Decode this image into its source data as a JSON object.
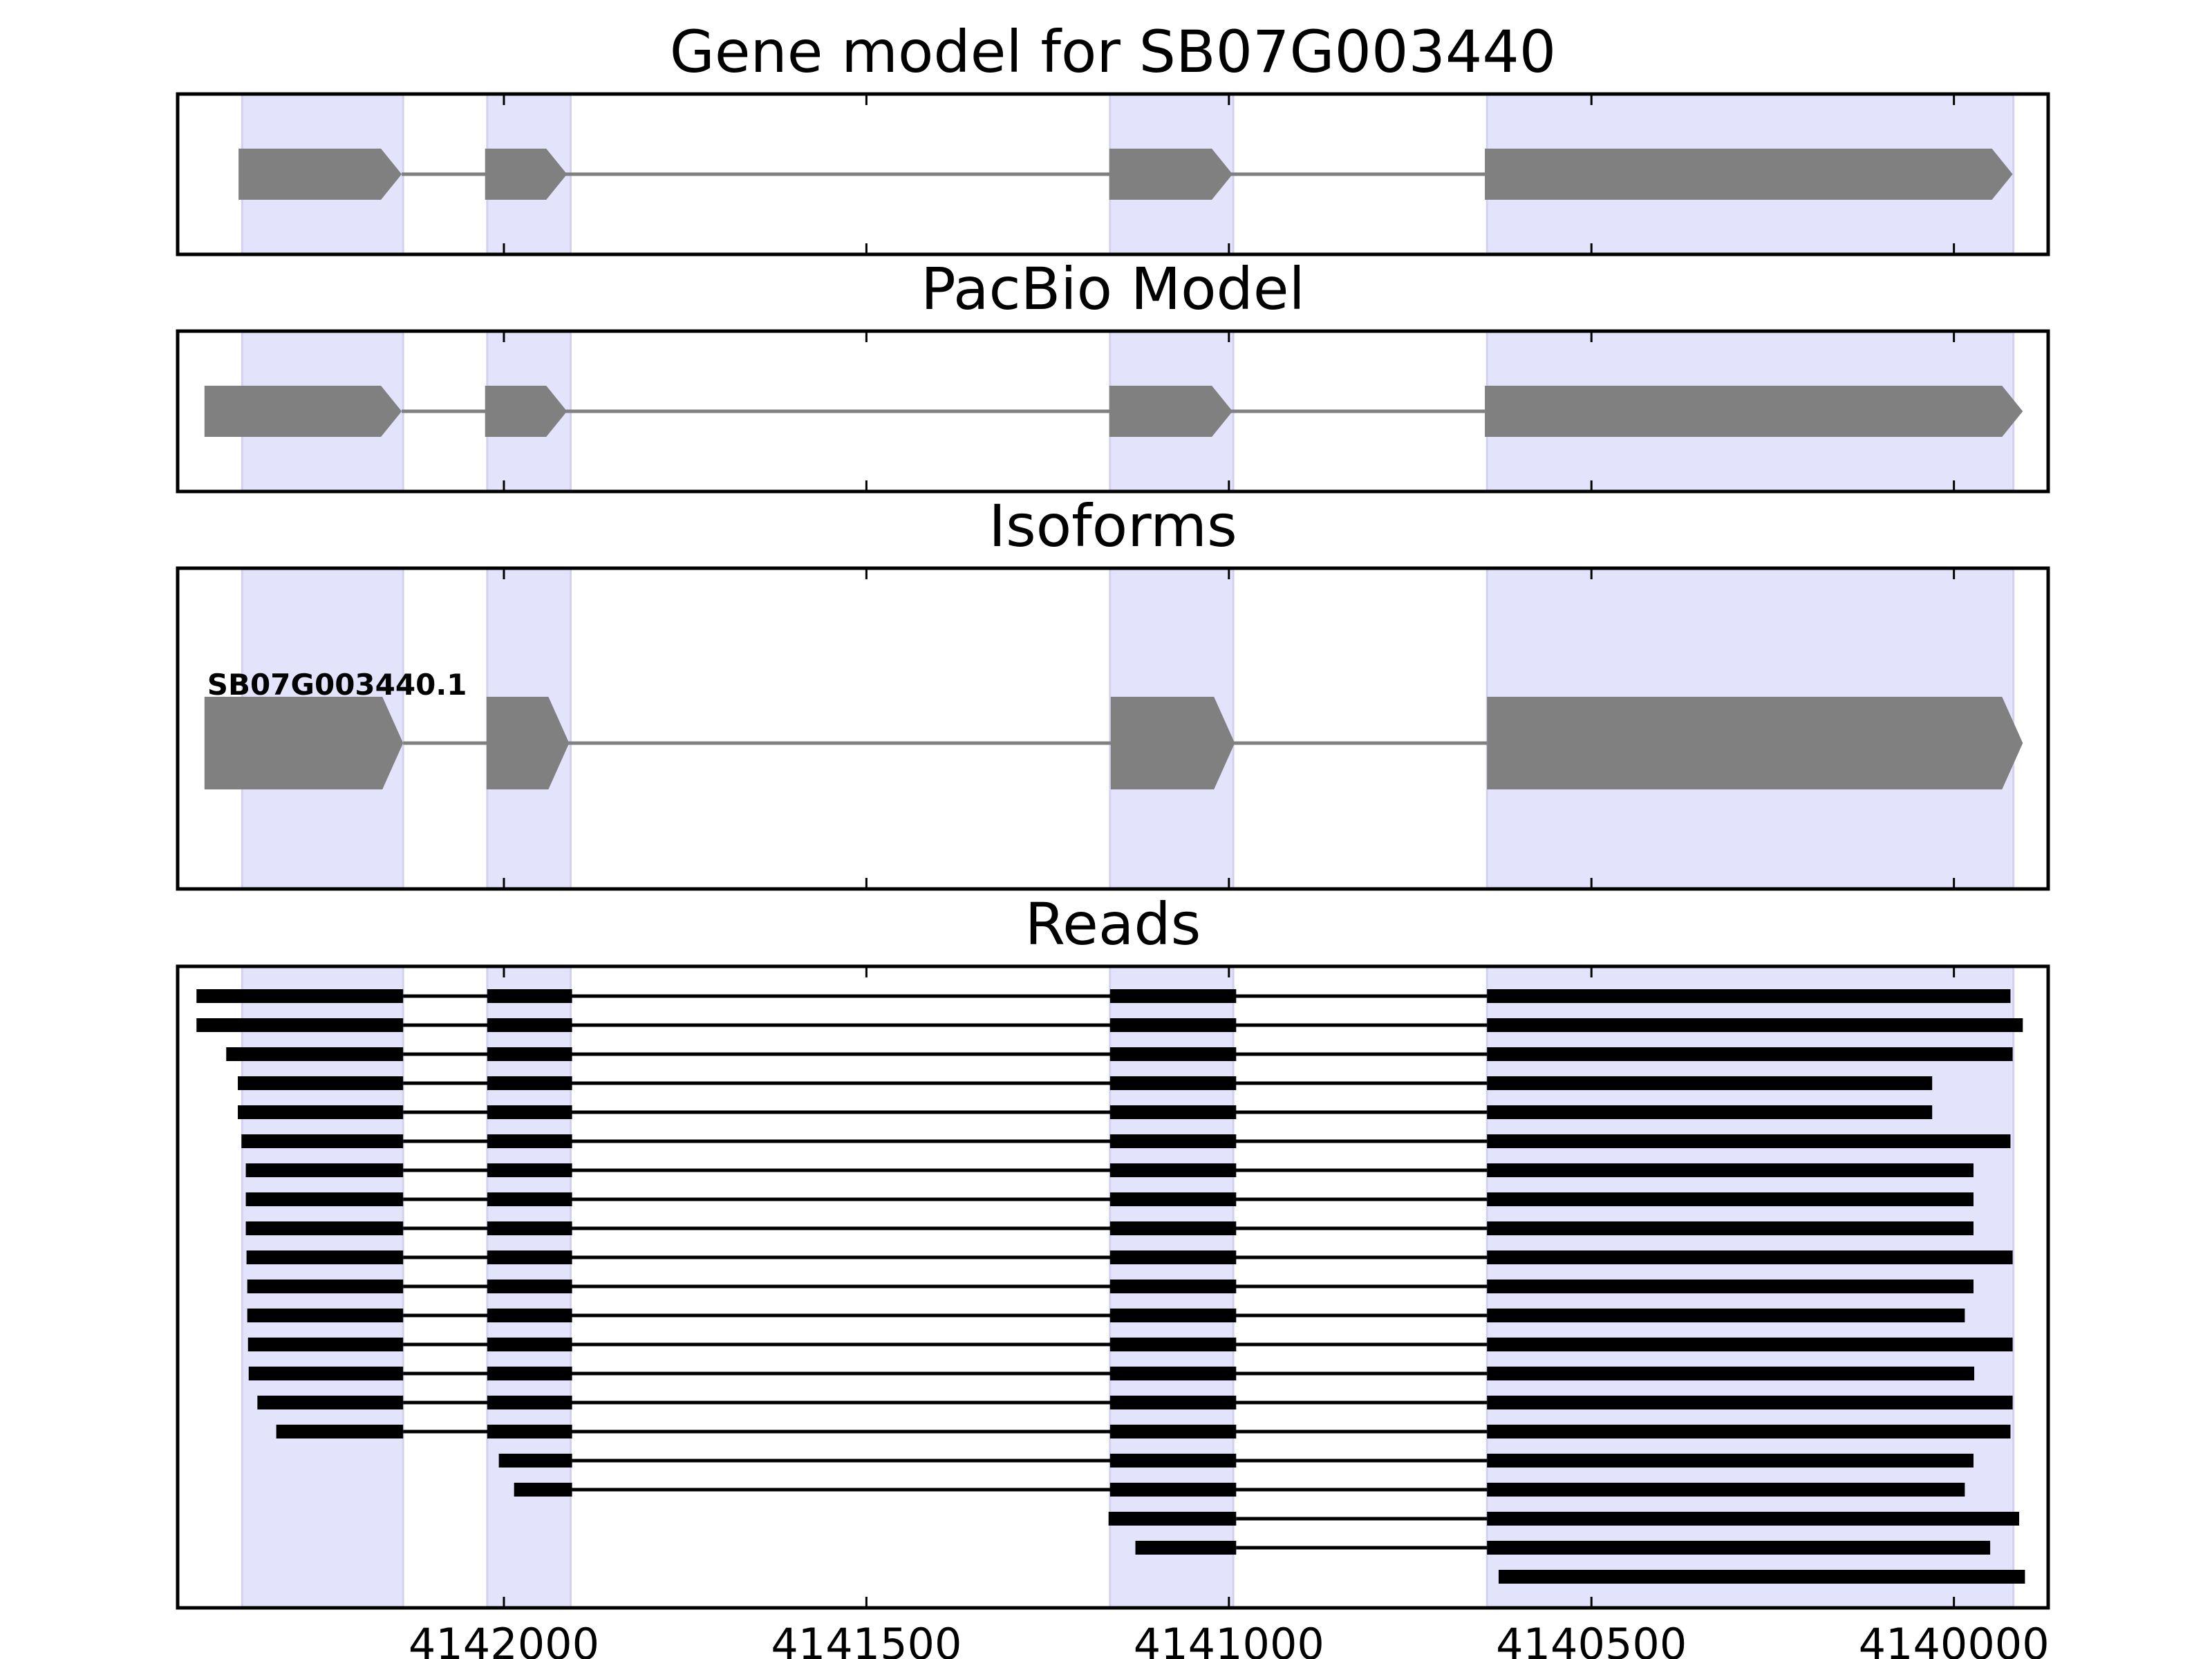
{
  "chart_data": {
    "type": "gene-structure",
    "x_axis": {
      "reversed": true,
      "xlim": [
        4142450,
        4139870
      ],
      "ticks": [
        4142000,
        4141500,
        4141000,
        4140500,
        4140000
      ],
      "tick_labels": [
        "4142000",
        "4141500",
        "4141000",
        "4140500",
        "4140000"
      ]
    },
    "colors": {
      "exon": "#808080",
      "intron": "#808080",
      "highlight": "#e3e3fb",
      "read": "#000000",
      "frame": "#000000"
    },
    "highlight_regions": [
      [
        4142361,
        4142139
      ],
      [
        4142023,
        4141908
      ],
      [
        4141164,
        4140994
      ],
      [
        4140644,
        4139918
      ]
    ],
    "panels": [
      {
        "id": "gene-model",
        "title": "Gene model for SB07G003440",
        "exon_style": "arrow",
        "tracks": [
          {
            "label": "",
            "exons": [
              [
                4142366,
                4142141
              ],
              [
                4142026,
                4141913
              ],
              [
                4141165,
                4140995
              ],
              [
                4140647,
                4139919
              ]
            ]
          }
        ]
      },
      {
        "id": "pacbio-model",
        "title": "PacBio Model",
        "exon_style": "arrow",
        "tracks": [
          {
            "label": "",
            "exons": [
              [
                4142413,
                4142141
              ],
              [
                4142026,
                4141913
              ],
              [
                4141165,
                4140995
              ],
              [
                4140647,
                4139905
              ]
            ]
          }
        ]
      },
      {
        "id": "isoforms",
        "title": "Isoforms",
        "exon_style": "arrow",
        "tracks": [
          {
            "label": "SB07G003440.1",
            "exons": [
              [
                4142413,
                4142139
              ],
              [
                4142024,
                4141910
              ],
              [
                4141163,
                4140992
              ],
              [
                4140644,
                4139905
              ]
            ]
          }
        ]
      },
      {
        "id": "reads",
        "title": "Reads",
        "exon_style": "bar",
        "tracks": [
          {
            "label": "",
            "exons": [
              [
                4142424,
                4142139
              ],
              [
                4142023,
                4141906
              ],
              [
                4141164,
                4140990
              ],
              [
                4140644,
                4139922
              ]
            ]
          },
          {
            "label": "",
            "exons": [
              [
                4142424,
                4142139
              ],
              [
                4142023,
                4141906
              ],
              [
                4141164,
                4140990
              ],
              [
                4140644,
                4139905
              ]
            ]
          },
          {
            "label": "",
            "exons": [
              [
                4142383,
                4142139
              ],
              [
                4142023,
                4141906
              ],
              [
                4141164,
                4140990
              ],
              [
                4140644,
                4139919
              ]
            ]
          },
          {
            "label": "",
            "exons": [
              [
                4142367,
                4142139
              ],
              [
                4142023,
                4141906
              ],
              [
                4141164,
                4140990
              ],
              [
                4140644,
                4140030
              ]
            ]
          },
          {
            "label": "",
            "exons": [
              [
                4142367,
                4142139
              ],
              [
                4142023,
                4141906
              ],
              [
                4141164,
                4140990
              ],
              [
                4140644,
                4140030
              ]
            ]
          },
          {
            "label": "",
            "exons": [
              [
                4142362,
                4142139
              ],
              [
                4142023,
                4141906
              ],
              [
                4141164,
                4140990
              ],
              [
                4140644,
                4139922
              ]
            ]
          },
          {
            "label": "",
            "exons": [
              [
                4142356,
                4142139
              ],
              [
                4142023,
                4141906
              ],
              [
                4141164,
                4140990
              ],
              [
                4140644,
                4139973
              ]
            ]
          },
          {
            "label": "",
            "exons": [
              [
                4142356,
                4142139
              ],
              [
                4142023,
                4141906
              ],
              [
                4141164,
                4140990
              ],
              [
                4140644,
                4139973
              ]
            ]
          },
          {
            "label": "",
            "exons": [
              [
                4142356,
                4142139
              ],
              [
                4142023,
                4141906
              ],
              [
                4141164,
                4140990
              ],
              [
                4140644,
                4139973
              ]
            ]
          },
          {
            "label": "",
            "exons": [
              [
                4142355,
                4142139
              ],
              [
                4142023,
                4141906
              ],
              [
                4141164,
                4140990
              ],
              [
                4140644,
                4139919
              ]
            ]
          },
          {
            "label": "",
            "exons": [
              [
                4142354,
                4142139
              ],
              [
                4142023,
                4141906
              ],
              [
                4141164,
                4140990
              ],
              [
                4140644,
                4139973
              ]
            ]
          },
          {
            "label": "",
            "exons": [
              [
                4142354,
                4142139
              ],
              [
                4142023,
                4141906
              ],
              [
                4141164,
                4140990
              ],
              [
                4140644,
                4139985
              ]
            ]
          },
          {
            "label": "",
            "exons": [
              [
                4142353,
                4142139
              ],
              [
                4142023,
                4141906
              ],
              [
                4141164,
                4140990
              ],
              [
                4140644,
                4139919
              ]
            ]
          },
          {
            "label": "",
            "exons": [
              [
                4142352,
                4142139
              ],
              [
                4142023,
                4141906
              ],
              [
                4141164,
                4140990
              ],
              [
                4140644,
                4139972
              ]
            ]
          },
          {
            "label": "",
            "exons": [
              [
                4142340,
                4142139
              ],
              [
                4142023,
                4141906
              ],
              [
                4141164,
                4140990
              ],
              [
                4140644,
                4139919
              ]
            ]
          },
          {
            "label": "",
            "exons": [
              [
                4142314,
                4142139
              ],
              [
                4142023,
                4141906
              ],
              [
                4141164,
                4140990
              ],
              [
                4140644,
                4139922
              ]
            ]
          },
          {
            "label": "",
            "exons": [
              [
                4142007,
                4141906
              ],
              [
                4141164,
                4140990
              ],
              [
                4140644,
                4139973
              ]
            ]
          },
          {
            "label": "",
            "exons": [
              [
                4141986,
                4141906
              ],
              [
                4141164,
                4140990
              ],
              [
                4140644,
                4139985
              ]
            ]
          },
          {
            "label": "",
            "exons": [
              [
                4141166,
                4140990
              ],
              [
                4140644,
                4139910
              ]
            ]
          },
          {
            "label": "",
            "exons": [
              [
                4141129,
                4140990
              ],
              [
                4140644,
                4139950
              ]
            ]
          },
          {
            "label": "",
            "exons": [
              [
                4140628,
                4139902
              ]
            ]
          }
        ]
      }
    ]
  }
}
